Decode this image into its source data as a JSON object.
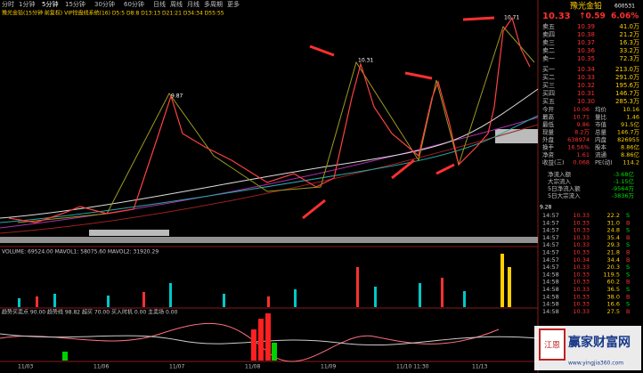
{
  "toolbar": {
    "tabs": [
      "分时",
      "1分钟",
      "5分钟",
      "15分钟",
      "30分钟",
      "60分钟",
      "日线",
      "周线",
      "月线",
      "多周期",
      "更多"
    ]
  },
  "chart_header": "豫光金铅(15分钟 前复权) VIP控盘线系统(16) D5:5 D8:8 D13:13 D21:21 D34:34 D55:55",
  "price_labels": {
    "high": "10.71",
    "mid1": "10.31",
    "mid2": "9.87",
    "low": "9.28"
  },
  "quote": {
    "name": "豫光金铅",
    "code": "600531",
    "price": "10.33",
    "change": "↑0.59",
    "pct": "6.06%"
  },
  "order_book": [
    [
      "卖五",
      "10.39",
      "41.0万"
    ],
    [
      "卖四",
      "10.38",
      "21.2万"
    ],
    [
      "卖三",
      "10.37",
      "16.3万"
    ],
    [
      "卖二",
      "10.36",
      "33.2万"
    ],
    [
      "卖一",
      "10.35",
      "72.3万"
    ],
    [
      "买一",
      "10.34",
      "213.0万"
    ],
    [
      "买二",
      "10.33",
      "291.0万"
    ],
    [
      "买三",
      "10.32",
      "195.6万"
    ],
    [
      "买四",
      "10.31",
      "146.7万"
    ],
    [
      "买五",
      "10.30",
      "285.3万"
    ]
  ],
  "stats": [
    [
      "今开",
      "10.06",
      "均价",
      "10.16"
    ],
    [
      "最高",
      "10.71",
      "量比",
      "1.46"
    ],
    [
      "最低",
      "9.86",
      "市值",
      "91.5亿"
    ],
    [
      "现量",
      "8.2万",
      "总量",
      "146.7万"
    ],
    [
      "外盘",
      "638974",
      "内盘",
      "826955"
    ],
    [
      "换手",
      "16.56%",
      "股本",
      "8.86亿"
    ],
    [
      "净资",
      "1.61",
      "流通",
      "8.86亿"
    ],
    [
      "收益(三)",
      "0.068",
      "PE(动)",
      "114.2"
    ]
  ],
  "flows": [
    [
      "净流入额",
      "-3.68亿"
    ],
    [
      "大宗流入",
      "-1.15亿"
    ],
    [
      "5日净流入额",
      "-9564万"
    ],
    [
      "5日大宗流入",
      "-3836万"
    ]
  ],
  "ticks": [
    [
      "14:57",
      "10.33",
      "22.2",
      "S"
    ],
    [
      "14:57",
      "10.33",
      "31.0",
      "B"
    ],
    [
      "14:57",
      "10.33",
      "24.8",
      "S"
    ],
    [
      "14:57",
      "10.33",
      "35.4",
      "B"
    ],
    [
      "14:57",
      "10.33",
      "29.3",
      "S"
    ],
    [
      "14:57",
      "10.33",
      "21.8",
      "B"
    ],
    [
      "14:57",
      "10.34",
      "34.4",
      "B"
    ],
    [
      "14:57",
      "10.33",
      "20.3",
      "S"
    ],
    [
      "14:58",
      "10.33",
      "119.5",
      "S"
    ],
    [
      "14:58",
      "10.33",
      "60.2",
      "B"
    ],
    [
      "14:58",
      "10.33",
      "36.5",
      "S"
    ],
    [
      "14:58",
      "10.33",
      "38.0",
      "B"
    ],
    [
      "14:58",
      "10.33",
      "16.6",
      "S"
    ],
    [
      "14:58",
      "10.33",
      "27.5",
      "B"
    ]
  ],
  "volume_header": "VOLUME: 69524.00  MAVOL1: 58075.60  MAVOL2: 31920.29",
  "trend_header": "趋势买卖点  90.00  趋势线 98.82  超买 70.00  买入时机 0.00  主卖场 0.00",
  "time_axis": [
    "11/03",
    "11/06",
    "11/07",
    "11/08",
    "11/09",
    "11/10 11:30",
    "11/13"
  ],
  "watermark": {
    "title": "赢家财富网",
    "url": "www.yingjia360.com"
  }
}
